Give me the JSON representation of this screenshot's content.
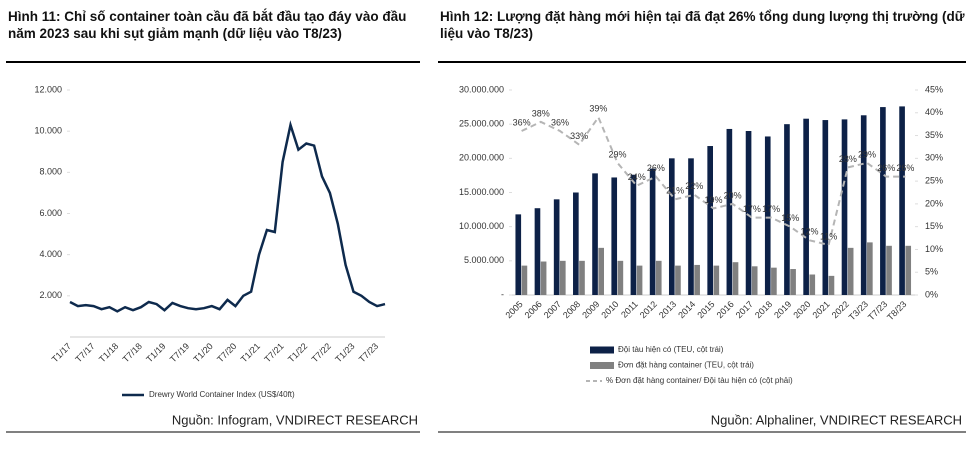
{
  "chart_data": [
    {
      "type": "line",
      "title": "Hình 11: Chỉ số container toàn cầu đã bắt đầu tạo đáy vào đầu năm 2023 sau khi sụt giảm mạnh (dữ liệu vào T8/23)",
      "categories": [
        "T1/17",
        null,
        null,
        "T7/17",
        null,
        null,
        "T1/18",
        null,
        null,
        "T7/18",
        null,
        null,
        "T1/19",
        null,
        null,
        "T7/19",
        null,
        null,
        "T1/20",
        null,
        null,
        "T7/20",
        null,
        null,
        "T1/21",
        null,
        null,
        "T7/21",
        null,
        null,
        "T1/22",
        null,
        null,
        "T7/22",
        null,
        null,
        "T1/23",
        null,
        null,
        "T7/23",
        null
      ],
      "series": [
        {
          "name": "Drewry World Container Index (US$/40ft)",
          "color": "#0e2a4d",
          "values": [
            1700,
            1500,
            1550,
            1500,
            1350,
            1450,
            1250,
            1450,
            1300,
            1450,
            1700,
            1600,
            1300,
            1650,
            1500,
            1400,
            1350,
            1400,
            1500,
            1350,
            1800,
            1500,
            2000,
            2200,
            4000,
            5200,
            5100,
            8500,
            10300,
            9100,
            9400,
            9300,
            7800,
            7000,
            5500,
            3500,
            2200,
            2000,
            1700,
            1500,
            1600
          ]
        }
      ],
      "ylim": [
        0,
        12000
      ],
      "yticks": [
        {
          "value": 2000,
          "label": "2.000"
        },
        {
          "value": 4000,
          "label": "4.000"
        },
        {
          "value": 6000,
          "label": "6.000"
        },
        {
          "value": 8000,
          "label": "8.000"
        },
        {
          "value": 10000,
          "label": "10.000"
        },
        {
          "value": 12000,
          "label": "12.000"
        }
      ],
      "source": "Nguồn: Infogram, VNDIRECT RESEARCH"
    },
    {
      "type": "bar",
      "title": "Hình 12: Lượng đặt hàng mới hiện tại đã đạt 26% tổng dung lượng thị trường (dữ liệu vào T8/23)",
      "categories": [
        "2005",
        "2006",
        "2007",
        "2008",
        "2009",
        "2010",
        "2011",
        "2012",
        "2013",
        "2014",
        "2015",
        "2016",
        "2017",
        "2018",
        "2019",
        "2020",
        "2021",
        "2022",
        "T3/23",
        "T7/23",
        "T8/23"
      ],
      "series": [
        {
          "name": "Đội tàu hiện có (TEU, cột trái)",
          "color": "#0d2147",
          "values": [
            11800000,
            12700000,
            14000000,
            15000000,
            17800000,
            17200000,
            17600000,
            18500000,
            20000000,
            20000000,
            21800000,
            24300000,
            24000000,
            23200000,
            25000000,
            25800000,
            25600000,
            25700000,
            26300000,
            27500000,
            27600000
          ]
        },
        {
          "name": "Đơn đặt hàng container (TEU, cột trái)",
          "color": "#808080",
          "values": [
            4300000,
            4900000,
            5000000,
            5000000,
            6900000,
            5000000,
            4300000,
            5000000,
            4300000,
            4400000,
            4300000,
            4800000,
            4200000,
            4000000,
            3800000,
            3000000,
            2800000,
            6900000,
            7700000,
            7200000,
            7200000
          ]
        },
        {
          "name": "% Đơn đặt hàng container/ Đội tàu hiện có (cột phải)",
          "color": "#b5b5b5",
          "axis": "y2",
          "values": [
            36,
            38,
            36,
            33,
            39,
            29,
            24,
            26,
            21,
            22,
            19,
            20,
            17,
            17,
            15,
            12,
            11,
            28,
            29,
            26,
            26
          ],
          "value_labels": [
            "36%",
            "38%",
            "36%",
            "33%",
            "39%",
            "29%",
            "24%",
            "26%",
            "21%",
            "22%",
            "19%",
            "20%",
            "17%",
            "17%",
            "15%",
            "12%",
            "11%",
            "28%",
            "29%",
            "26%",
            "26%"
          ]
        }
      ],
      "ylim": [
        0,
        30000000
      ],
      "yticks": [
        {
          "value": 0,
          "label": "-"
        },
        {
          "value": 5000000,
          "label": "5.000.000"
        },
        {
          "value": 10000000,
          "label": "10.000.000"
        },
        {
          "value": 15000000,
          "label": "15.000.000"
        },
        {
          "value": 20000000,
          "label": "20.000.000"
        },
        {
          "value": 25000000,
          "label": "25.000.000"
        },
        {
          "value": 30000000,
          "label": "30.000.000"
        }
      ],
      "y2lim": [
        0,
        45
      ],
      "y2ticks": [
        {
          "value": 0,
          "label": "0%"
        },
        {
          "value": 5,
          "label": "5%"
        },
        {
          "value": 10,
          "label": "10%"
        },
        {
          "value": 15,
          "label": "15%"
        },
        {
          "value": 20,
          "label": "20%"
        },
        {
          "value": 25,
          "label": "25%"
        },
        {
          "value": 30,
          "label": "30%"
        },
        {
          "value": 35,
          "label": "35%"
        },
        {
          "value": 40,
          "label": "40%"
        },
        {
          "value": 45,
          "label": "45%"
        }
      ],
      "source": "Nguồn: Alphaliner, VNDIRECT RESEARCH"
    }
  ]
}
